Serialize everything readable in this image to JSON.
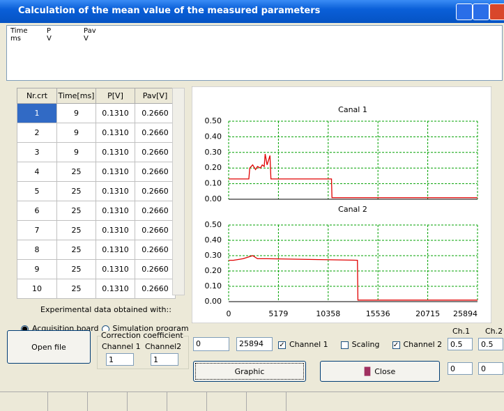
{
  "window": {
    "title": "Calculation of the mean value of the measured parameters"
  },
  "info_columns": [
    [
      "Time",
      "ms"
    ],
    [
      "P",
      "V"
    ],
    [
      "Pav",
      "V"
    ]
  ],
  "table": {
    "columns": [
      "Nr.crt",
      "Time[ms]",
      "P[V]",
      "Pav[V]"
    ],
    "rows": [
      [
        "1",
        "9",
        "0.1310",
        "0.2660"
      ],
      [
        "2",
        "9",
        "0.1310",
        "0.2660"
      ],
      [
        "3",
        "9",
        "0.1310",
        "0.2660"
      ],
      [
        "4",
        "25",
        "0.1310",
        "0.2660"
      ],
      [
        "5",
        "25",
        "0.1310",
        "0.2660"
      ],
      [
        "6",
        "25",
        "0.1310",
        "0.2660"
      ],
      [
        "7",
        "25",
        "0.1310",
        "0.2660"
      ],
      [
        "8",
        "25",
        "0.1310",
        "0.2660"
      ],
      [
        "9",
        "25",
        "0.1310",
        "0.2660"
      ],
      [
        "10",
        "25",
        "0.1310",
        "0.2660"
      ]
    ],
    "selected_row": 0
  },
  "source": {
    "label": "Experimental data obtained with::",
    "options": [
      "Acquisition board",
      "Simulation program"
    ],
    "selected": 0
  },
  "correction": {
    "title": "Correction coefficient",
    "channel1_label": "Channel 1",
    "channel2_label": "Channel2",
    "channel1_value": "1",
    "channel2_value": "1"
  },
  "buttons": {
    "open_file": "Open file",
    "graphic": "Graphic",
    "close": "Close"
  },
  "controls": {
    "x_from": "0",
    "x_to": "25894",
    "channel1": {
      "label": "Channel 1",
      "checked": true
    },
    "scaling": {
      "label": "Scaling",
      "checked": false
    },
    "channel2": {
      "label": "Channel 2",
      "checked": true
    },
    "ch1_label": "Ch.1",
    "ch2_label": "Ch.2",
    "ch1_scale": "0.5",
    "ch2_scale": "0.5",
    "ch1_offset": "0",
    "ch2_offset": "0"
  },
  "chart_data": [
    {
      "type": "line",
      "title": "Canal 1",
      "grid": true,
      "grid_color": "#00a000",
      "xlim": [
        0,
        25894
      ],
      "ylim": [
        0,
        0.5
      ],
      "xticks": [
        0,
        5179,
        10358,
        15536,
        20715,
        25894
      ],
      "yticks": [
        {
          "value": 0,
          "label": "0.00"
        },
        {
          "value": 0.1,
          "label": "0.10"
        },
        {
          "value": 0.2,
          "label": "0.20"
        },
        {
          "value": 0.3,
          "label": "0.30"
        },
        {
          "value": 0.4,
          "label": "0.40"
        },
        {
          "value": 0.5,
          "label": "0.50"
        }
      ],
      "series": [
        {
          "color": "#e00000",
          "x": [
            0,
            2100,
            2200,
            2500,
            2800,
            3000,
            3300,
            3500,
            3700,
            3800,
            4000,
            4300,
            4400,
            10700,
            10750,
            25894
          ],
          "values": [
            0.13,
            0.13,
            0.2,
            0.22,
            0.19,
            0.21,
            0.2,
            0.22,
            0.21,
            0.29,
            0.22,
            0.28,
            0.13,
            0.13,
            0.01,
            0.01
          ]
        }
      ]
    },
    {
      "type": "line",
      "title": "Canal 2",
      "grid": true,
      "grid_color": "#00a000",
      "xlim": [
        0,
        25894
      ],
      "ylim": [
        0,
        0.5
      ],
      "xticks": [
        0,
        5179,
        10358,
        15536,
        20715,
        25894
      ],
      "yticks": [
        {
          "value": 0,
          "label": "0.00"
        },
        {
          "value": 0.1,
          "label": "0.10"
        },
        {
          "value": 0.2,
          "label": "0.20"
        },
        {
          "value": 0.3,
          "label": "0.30"
        },
        {
          "value": 0.4,
          "label": "0.40"
        },
        {
          "value": 0.5,
          "label": "0.50"
        }
      ],
      "series": [
        {
          "color": "#e00000",
          "x": [
            0,
            500,
            1500,
            2500,
            3000,
            4000,
            13400,
            13450,
            25894
          ],
          "values": [
            0.27,
            0.27,
            0.28,
            0.3,
            0.28,
            0.28,
            0.27,
            0.01,
            0.01
          ]
        }
      ]
    }
  ]
}
